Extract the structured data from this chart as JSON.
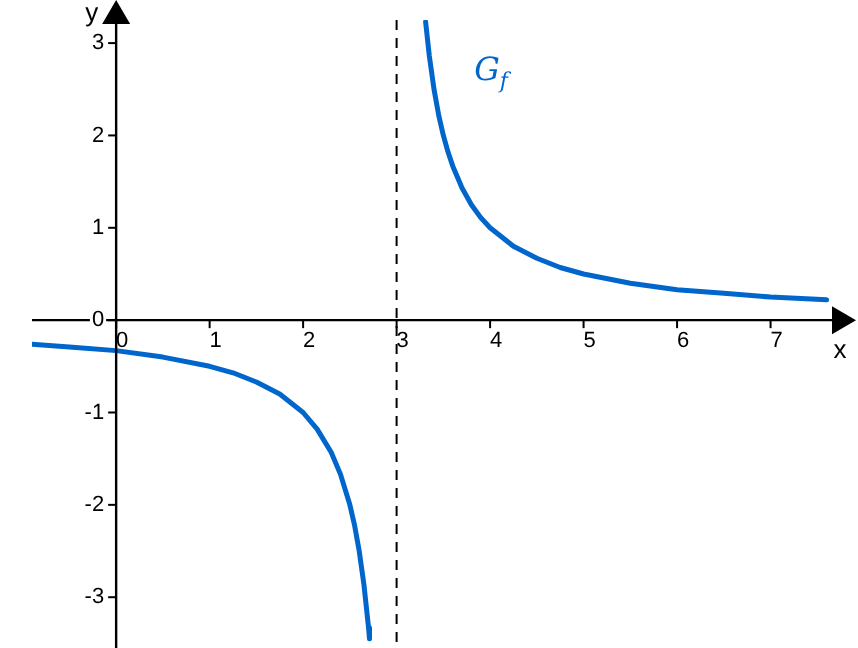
{
  "chart_data": {
    "type": "line",
    "xlabel": "x",
    "ylabel": "y",
    "x": [
      -0.9,
      -0.5,
      0,
      0.5,
      1,
      1.25,
      1.5,
      1.75,
      2,
      2.15,
      2.3,
      2.4,
      2.5,
      2.55,
      2.6,
      2.65,
      2.7,
      2.71,
      3,
      3.31,
      3.35,
      3.4,
      3.45,
      3.5,
      3.55,
      3.6,
      3.7,
      3.8,
      3.9,
      4,
      4.25,
      4.5,
      4.75,
      5,
      5.5,
      6,
      6.5,
      7,
      7.6
    ],
    "series": [
      {
        "color": "#0066cc",
        "values": [
          -0.26,
          -0.29,
          -0.33,
          -0.4,
          -0.5,
          -0.57,
          -0.67,
          -0.8,
          -1,
          -1.18,
          -1.43,
          -1.67,
          -2,
          -2.22,
          -2.5,
          -2.86,
          -3.33,
          -3.45,
          null,
          3.23,
          2.86,
          2.5,
          2.22,
          2,
          1.82,
          1.67,
          1.43,
          1.25,
          1.11,
          1,
          0.8,
          0.67,
          0.57,
          0.5,
          0.4,
          0.33,
          0.29,
          0.25,
          0.22
        ]
      }
    ],
    "xlim": [
      -0.9,
      7.7
    ],
    "ylim": [
      -3.55,
      3.25
    ],
    "xticks": [
      0,
      1,
      2,
      3,
      4,
      5,
      6,
      7
    ],
    "yticks": [
      -3,
      -2,
      -1,
      0,
      1,
      2,
      3
    ],
    "ref_lines": [
      {
        "axis": "x",
        "value": 3,
        "color": "#000000",
        "line_style": "dashed"
      }
    ],
    "annotations": [
      "G$_{f}$"
    ],
    "grid": false,
    "legend": false,
    "marker": "none",
    "line_style": "solid"
  }
}
